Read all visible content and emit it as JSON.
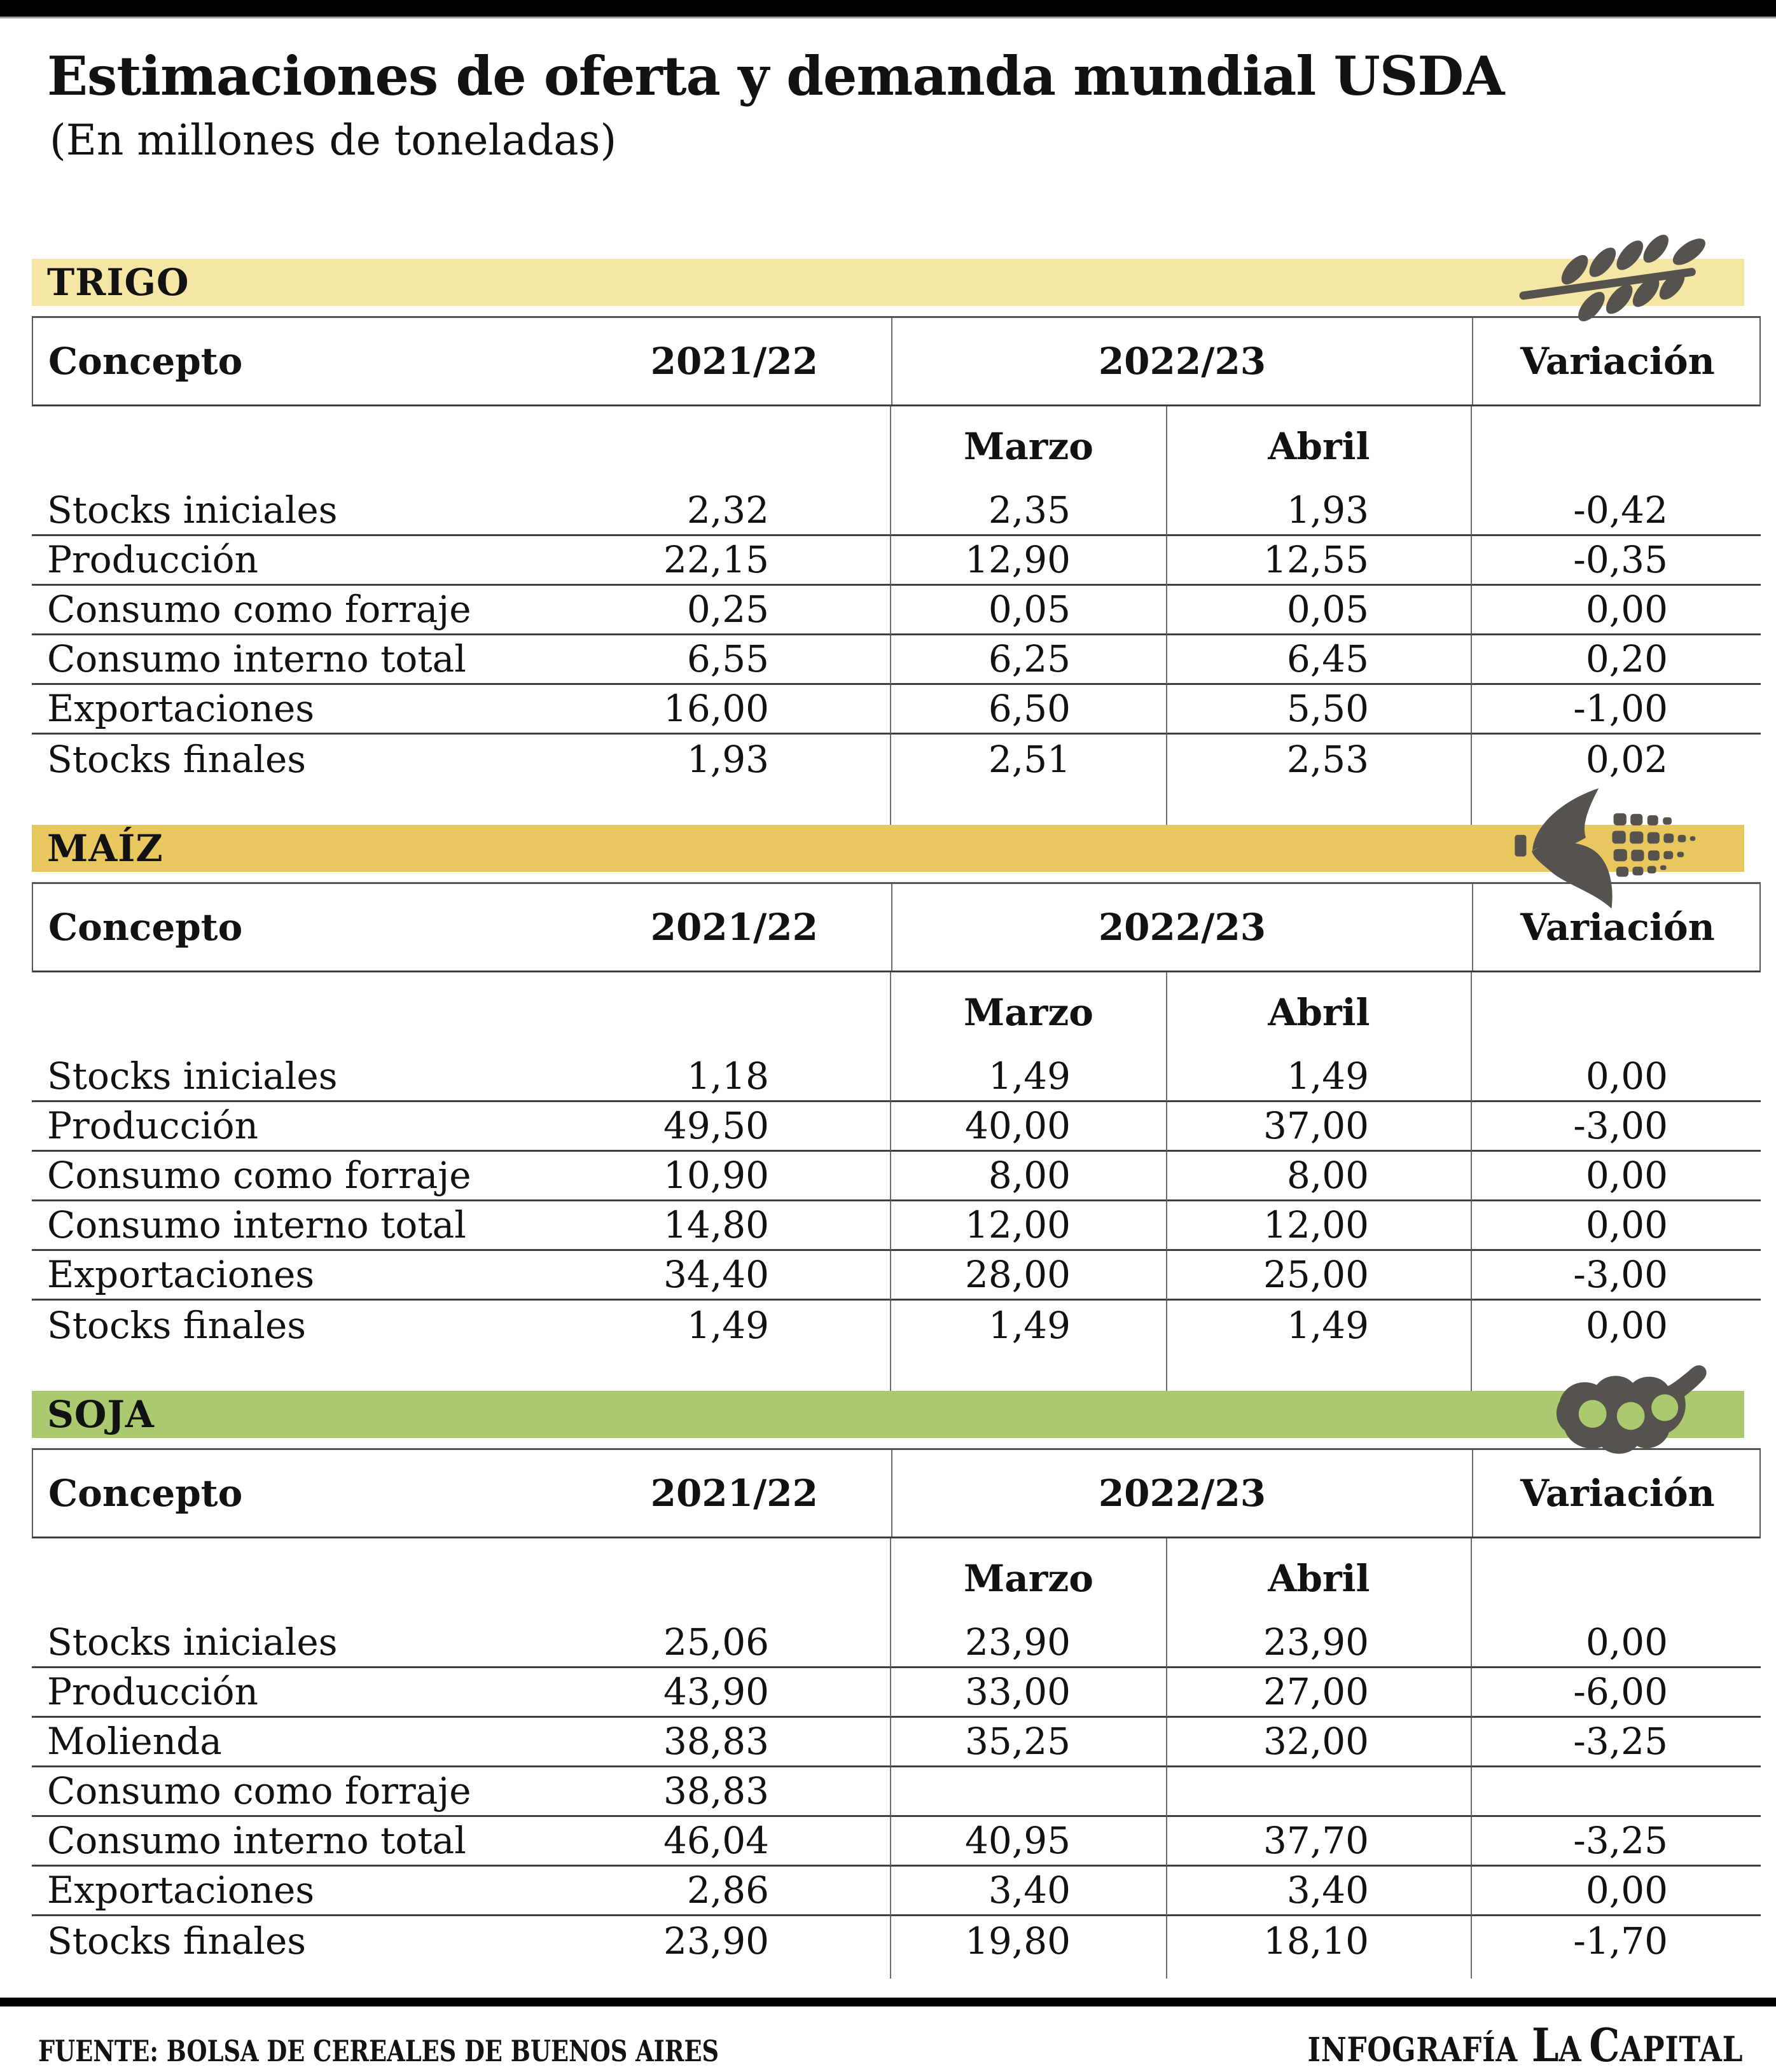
{
  "page": {
    "title": "Estimaciones de oferta y demanda mundial USDA",
    "subtitle": "(En millones de toneladas)"
  },
  "table_headers": {
    "concepto": "Concepto",
    "season_prev": "2021/22",
    "season_curr": "2022/23",
    "variacion": "Variación",
    "marzo": "Marzo",
    "abril": "Abril"
  },
  "sections": [
    {
      "id": "trigo",
      "label": "TRIGO",
      "icon": "wheat-icon",
      "bar_color": "#f6e6a6",
      "rows": [
        {
          "concepto": "Stocks iniciales",
          "y2021_22": "2,32",
          "marzo": "2,35",
          "abril": "1,93",
          "variacion": "-0,42"
        },
        {
          "concepto": "Producción",
          "y2021_22": "22,15",
          "marzo": "12,90",
          "abril": "12,55",
          "variacion": "-0,35"
        },
        {
          "concepto": "Consumo como forraje",
          "y2021_22": "0,25",
          "marzo": "0,05",
          "abril": "0,05",
          "variacion": "0,00"
        },
        {
          "concepto": "Consumo interno total",
          "y2021_22": "6,55",
          "marzo": "6,25",
          "abril": "6,45",
          "variacion": "0,20"
        },
        {
          "concepto": "Exportaciones",
          "y2021_22": "16,00",
          "marzo": "6,50",
          "abril": "5,50",
          "variacion": "-1,00"
        },
        {
          "concepto": "Stocks finales",
          "y2021_22": "1,93",
          "marzo": "2,51",
          "abril": "2,53",
          "variacion": "0,02"
        }
      ]
    },
    {
      "id": "maiz",
      "label": "MAÍZ",
      "icon": "corn-icon",
      "bar_color": "#e8c75f",
      "rows": [
        {
          "concepto": "Stocks iniciales",
          "y2021_22": "1,18",
          "marzo": "1,49",
          "abril": "1,49",
          "variacion": "0,00"
        },
        {
          "concepto": "Producción",
          "y2021_22": "49,50",
          "marzo": "40,00",
          "abril": "37,00",
          "variacion": "-3,00"
        },
        {
          "concepto": "Consumo como forraje",
          "y2021_22": "10,90",
          "marzo": "8,00",
          "abril": "8,00",
          "variacion": "0,00"
        },
        {
          "concepto": "Consumo interno total",
          "y2021_22": "14,80",
          "marzo": "12,00",
          "abril": "12,00",
          "variacion": "0,00"
        },
        {
          "concepto": "Exportaciones",
          "y2021_22": "34,40",
          "marzo": "28,00",
          "abril": "25,00",
          "variacion": "-3,00"
        },
        {
          "concepto": "Stocks finales",
          "y2021_22": "1,49",
          "marzo": "1,49",
          "abril": "1,49",
          "variacion": "0,00"
        }
      ]
    },
    {
      "id": "soja",
      "label": "SOJA",
      "icon": "soy-icon",
      "bar_color": "#abc96f",
      "rows": [
        {
          "concepto": "Stocks iniciales",
          "y2021_22": "25,06",
          "marzo": "23,90",
          "abril": "23,90",
          "variacion": "0,00"
        },
        {
          "concepto": "Producción",
          "y2021_22": "43,90",
          "marzo": "33,00",
          "abril": "27,00",
          "variacion": "-6,00"
        },
        {
          "concepto": "Molienda",
          "y2021_22": "38,83",
          "marzo": "35,25",
          "abril": "32,00",
          "variacion": "-3,25"
        },
        {
          "concepto": "Consumo como forraje",
          "y2021_22": "38,83",
          "marzo": "",
          "abril": "",
          "variacion": ""
        },
        {
          "concepto": "Consumo interno total",
          "y2021_22": "46,04",
          "marzo": "40,95",
          "abril": "37,70",
          "variacion": "-3,25"
        },
        {
          "concepto": "Exportaciones",
          "y2021_22": "2,86",
          "marzo": "3,40",
          "abril": "3,40",
          "variacion": "0,00"
        },
        {
          "concepto": "Stocks finales",
          "y2021_22": "23,90",
          "marzo": "19,80",
          "abril": "18,10",
          "variacion": "-1,70"
        }
      ]
    }
  ],
  "footer": {
    "source": "FUENTE: BOLSA DE CEREALES DE BUENOS AIRES",
    "credit_prefix": "INFOGRAFÍA",
    "brand_parts": [
      [
        "L",
        "A"
      ],
      [
        "C",
        "APITAL"
      ]
    ]
  },
  "colors": {
    "trigo_bar": "#f6e6a6",
    "maiz_bar": "#e8c75f",
    "soja_bar": "#abc96f",
    "icon_gray": "#56524d",
    "rule_dark": "#3f3f3f",
    "rule_gray": "#6e6e6e",
    "top_bar": "#000000"
  },
  "chart_data": [
    {
      "type": "table",
      "title": "TRIGO",
      "unit": "millones de toneladas",
      "columns": [
        "Concepto",
        "2021/22",
        "2022/23 Marzo",
        "2022/23 Abril",
        "Variación"
      ],
      "rows": [
        [
          "Stocks iniciales",
          2.32,
          2.35,
          1.93,
          -0.42
        ],
        [
          "Producción",
          22.15,
          12.9,
          12.55,
          -0.35
        ],
        [
          "Consumo como forraje",
          0.25,
          0.05,
          0.05,
          0.0
        ],
        [
          "Consumo interno total",
          6.55,
          6.25,
          6.45,
          0.2
        ],
        [
          "Exportaciones",
          16.0,
          6.5,
          5.5,
          -1.0
        ],
        [
          "Stocks finales",
          1.93,
          2.51,
          2.53,
          0.02
        ]
      ]
    },
    {
      "type": "table",
      "title": "MAÍZ",
      "unit": "millones de toneladas",
      "columns": [
        "Concepto",
        "2021/22",
        "2022/23 Marzo",
        "2022/23 Abril",
        "Variación"
      ],
      "rows": [
        [
          "Stocks iniciales",
          1.18,
          1.49,
          1.49,
          0.0
        ],
        [
          "Producción",
          49.5,
          40.0,
          37.0,
          -3.0
        ],
        [
          "Consumo como forraje",
          10.9,
          8.0,
          8.0,
          0.0
        ],
        [
          "Consumo interno total",
          14.8,
          12.0,
          12.0,
          0.0
        ],
        [
          "Exportaciones",
          34.4,
          28.0,
          25.0,
          -3.0
        ],
        [
          "Stocks finales",
          1.49,
          1.49,
          1.49,
          0.0
        ]
      ]
    },
    {
      "type": "table",
      "title": "SOJA",
      "unit": "millones de toneladas",
      "columns": [
        "Concepto",
        "2021/22",
        "2022/23 Marzo",
        "2022/23 Abril",
        "Variación"
      ],
      "rows": [
        [
          "Stocks iniciales",
          25.06,
          23.9,
          23.9,
          0.0
        ],
        [
          "Producción",
          43.9,
          33.0,
          27.0,
          -6.0
        ],
        [
          "Molienda",
          38.83,
          35.25,
          32.0,
          -3.25
        ],
        [
          "Consumo como forraje",
          38.83,
          null,
          null,
          null
        ],
        [
          "Consumo interno total",
          46.04,
          40.95,
          37.7,
          -3.25
        ],
        [
          "Exportaciones",
          2.86,
          3.4,
          3.4,
          0.0
        ],
        [
          "Stocks finales",
          23.9,
          19.8,
          18.1,
          -1.7
        ]
      ]
    }
  ]
}
